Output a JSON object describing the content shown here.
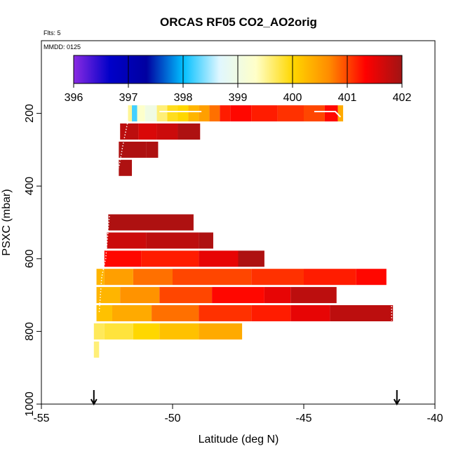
{
  "chart_data": {
    "type": "heatmap",
    "title": "ORCAS RF05 CO2_AO2orig",
    "flights_note": "Flts: 5",
    "date_note": "MMDD: 0125",
    "xlabel": "Latitude (deg N)",
    "ylabel": "PSXC (mbar)",
    "xlim": [
      -55,
      -40
    ],
    "ylim": [
      1000,
      0
    ],
    "x_ticks": [
      -55,
      -50,
      -45,
      -40
    ],
    "y_ticks": [
      200,
      400,
      600,
      800,
      1000
    ],
    "colorbar": {
      "min": 396,
      "max": 402,
      "ticks": [
        396,
        397,
        398,
        399,
        400,
        401,
        402
      ],
      "stops": [
        "#8a2be2",
        "#0000c8",
        "#0000a0",
        "#00bfff",
        "#e0f7ff",
        "#ffffc8",
        "#ffd700",
        "#ff8c00",
        "#ff0000",
        "#a01414"
      ]
    },
    "bands": [
      {
        "p": 200,
        "cells": [
          [
            -51.7,
            -51.55,
            399.5
          ],
          [
            -51.55,
            -51.35,
            398.2
          ],
          [
            -51.35,
            -51.05,
            399.3
          ],
          [
            -51.05,
            -50.6,
            399.0
          ],
          [
            -50.6,
            -50.2,
            399.6
          ],
          [
            -50.2,
            -49.8,
            399.9
          ],
          [
            -49.8,
            -49.4,
            400.0
          ],
          [
            -49.4,
            -49.0,
            400.3
          ],
          [
            -49.0,
            -48.6,
            400.5
          ],
          [
            -48.6,
            -48.2,
            400.8
          ],
          [
            -48.2,
            -47.8,
            401.2
          ],
          [
            -47.8,
            -47.0,
            401.3
          ],
          [
            -47.0,
            -46.0,
            401.2
          ],
          [
            -46.0,
            -45.0,
            401.1
          ],
          [
            -45.0,
            -44.2,
            401.0
          ],
          [
            -44.2,
            -43.7,
            401.3
          ],
          [
            -43.7,
            -43.5,
            400.4
          ]
        ]
      },
      {
        "p": 250,
        "cells": [
          [
            -52.0,
            -51.3,
            401.8
          ],
          [
            -51.3,
            -50.6,
            401.6
          ],
          [
            -50.6,
            -49.8,
            401.7
          ],
          [
            -49.8,
            -48.95,
            401.9
          ]
        ]
      },
      {
        "p": 300,
        "cells": [
          [
            -52.05,
            -51.0,
            401.9
          ],
          [
            -51.0,
            -50.55,
            401.9
          ]
        ]
      },
      {
        "p": 350,
        "cells": [
          [
            -52.05,
            -51.55,
            401.9
          ]
        ]
      },
      {
        "p": 500,
        "cells": [
          [
            -52.45,
            -49.2,
            401.9
          ]
        ]
      },
      {
        "p": 550,
        "cells": [
          [
            -52.5,
            -51.0,
            401.7
          ],
          [
            -51.0,
            -49.0,
            401.8
          ],
          [
            -49.0,
            -48.45,
            401.9
          ]
        ]
      },
      {
        "p": 600,
        "cells": [
          [
            -52.6,
            -51.2,
            401.3
          ],
          [
            -51.2,
            -49.0,
            401.2
          ],
          [
            -49.0,
            -47.5,
            401.5
          ],
          [
            -47.5,
            -46.5,
            401.9
          ]
        ]
      },
      {
        "p": 650,
        "cells": [
          [
            -52.9,
            -52.6,
            400.3
          ],
          [
            -52.6,
            -51.5,
            400.5
          ],
          [
            -51.5,
            -50.0,
            400.8
          ],
          [
            -50.0,
            -47.0,
            401.0
          ],
          [
            -47.0,
            -45.0,
            401.1
          ],
          [
            -45.0,
            -43.0,
            401.2
          ],
          [
            -43.0,
            -41.85,
            401.3
          ]
        ]
      },
      {
        "p": 700,
        "cells": [
          [
            -52.9,
            -52.0,
            400.3
          ],
          [
            -52.0,
            -50.5,
            400.6
          ],
          [
            -50.5,
            -48.5,
            401.0
          ],
          [
            -48.5,
            -46.5,
            401.3
          ],
          [
            -46.5,
            -45.5,
            401.5
          ],
          [
            -45.5,
            -43.75,
            401.8
          ]
        ]
      },
      {
        "p": 750,
        "cells": [
          [
            -52.9,
            -52.3,
            400.2
          ],
          [
            -52.3,
            -50.8,
            400.4
          ],
          [
            -50.8,
            -49.0,
            400.8
          ],
          [
            -49.0,
            -47.0,
            401.1
          ],
          [
            -47.0,
            -45.5,
            401.2
          ],
          [
            -45.5,
            -44.0,
            401.5
          ],
          [
            -44.0,
            -41.6,
            401.8
          ]
        ]
      },
      {
        "p": 800,
        "cells": [
          [
            -53.0,
            -52.6,
            399.7
          ],
          [
            -52.6,
            -51.5,
            399.8
          ],
          [
            -51.5,
            -50.5,
            400.0
          ],
          [
            -50.5,
            -49.0,
            400.2
          ],
          [
            -49.0,
            -47.35,
            400.4
          ]
        ]
      },
      {
        "p": 850,
        "cells": [
          [
            -53.0,
            -52.8,
            399.6
          ]
        ]
      }
    ],
    "track_segments": [
      {
        "style": "solid",
        "points": [
          [
            -50.5,
            195
          ],
          [
            -48.9,
            195
          ]
        ]
      },
      {
        "style": "solid",
        "points": [
          [
            -44.6,
            195
          ],
          [
            -43.8,
            195
          ],
          [
            -43.6,
            210
          ]
        ]
      },
      {
        "style": "dotted",
        "points": [
          [
            -51.7,
            220
          ],
          [
            -51.9,
            290
          ],
          [
            -52.05,
            350
          ]
        ]
      },
      {
        "style": "dotted",
        "points": [
          [
            -52.4,
            475
          ],
          [
            -52.55,
            600
          ],
          [
            -52.7,
            650
          ],
          [
            -52.8,
            750
          ]
        ]
      },
      {
        "style": "dotted",
        "points": [
          [
            -41.65,
            730
          ],
          [
            -41.65,
            770
          ]
        ]
      }
    ],
    "arrows": [
      -53.0,
      -41.45
    ]
  }
}
